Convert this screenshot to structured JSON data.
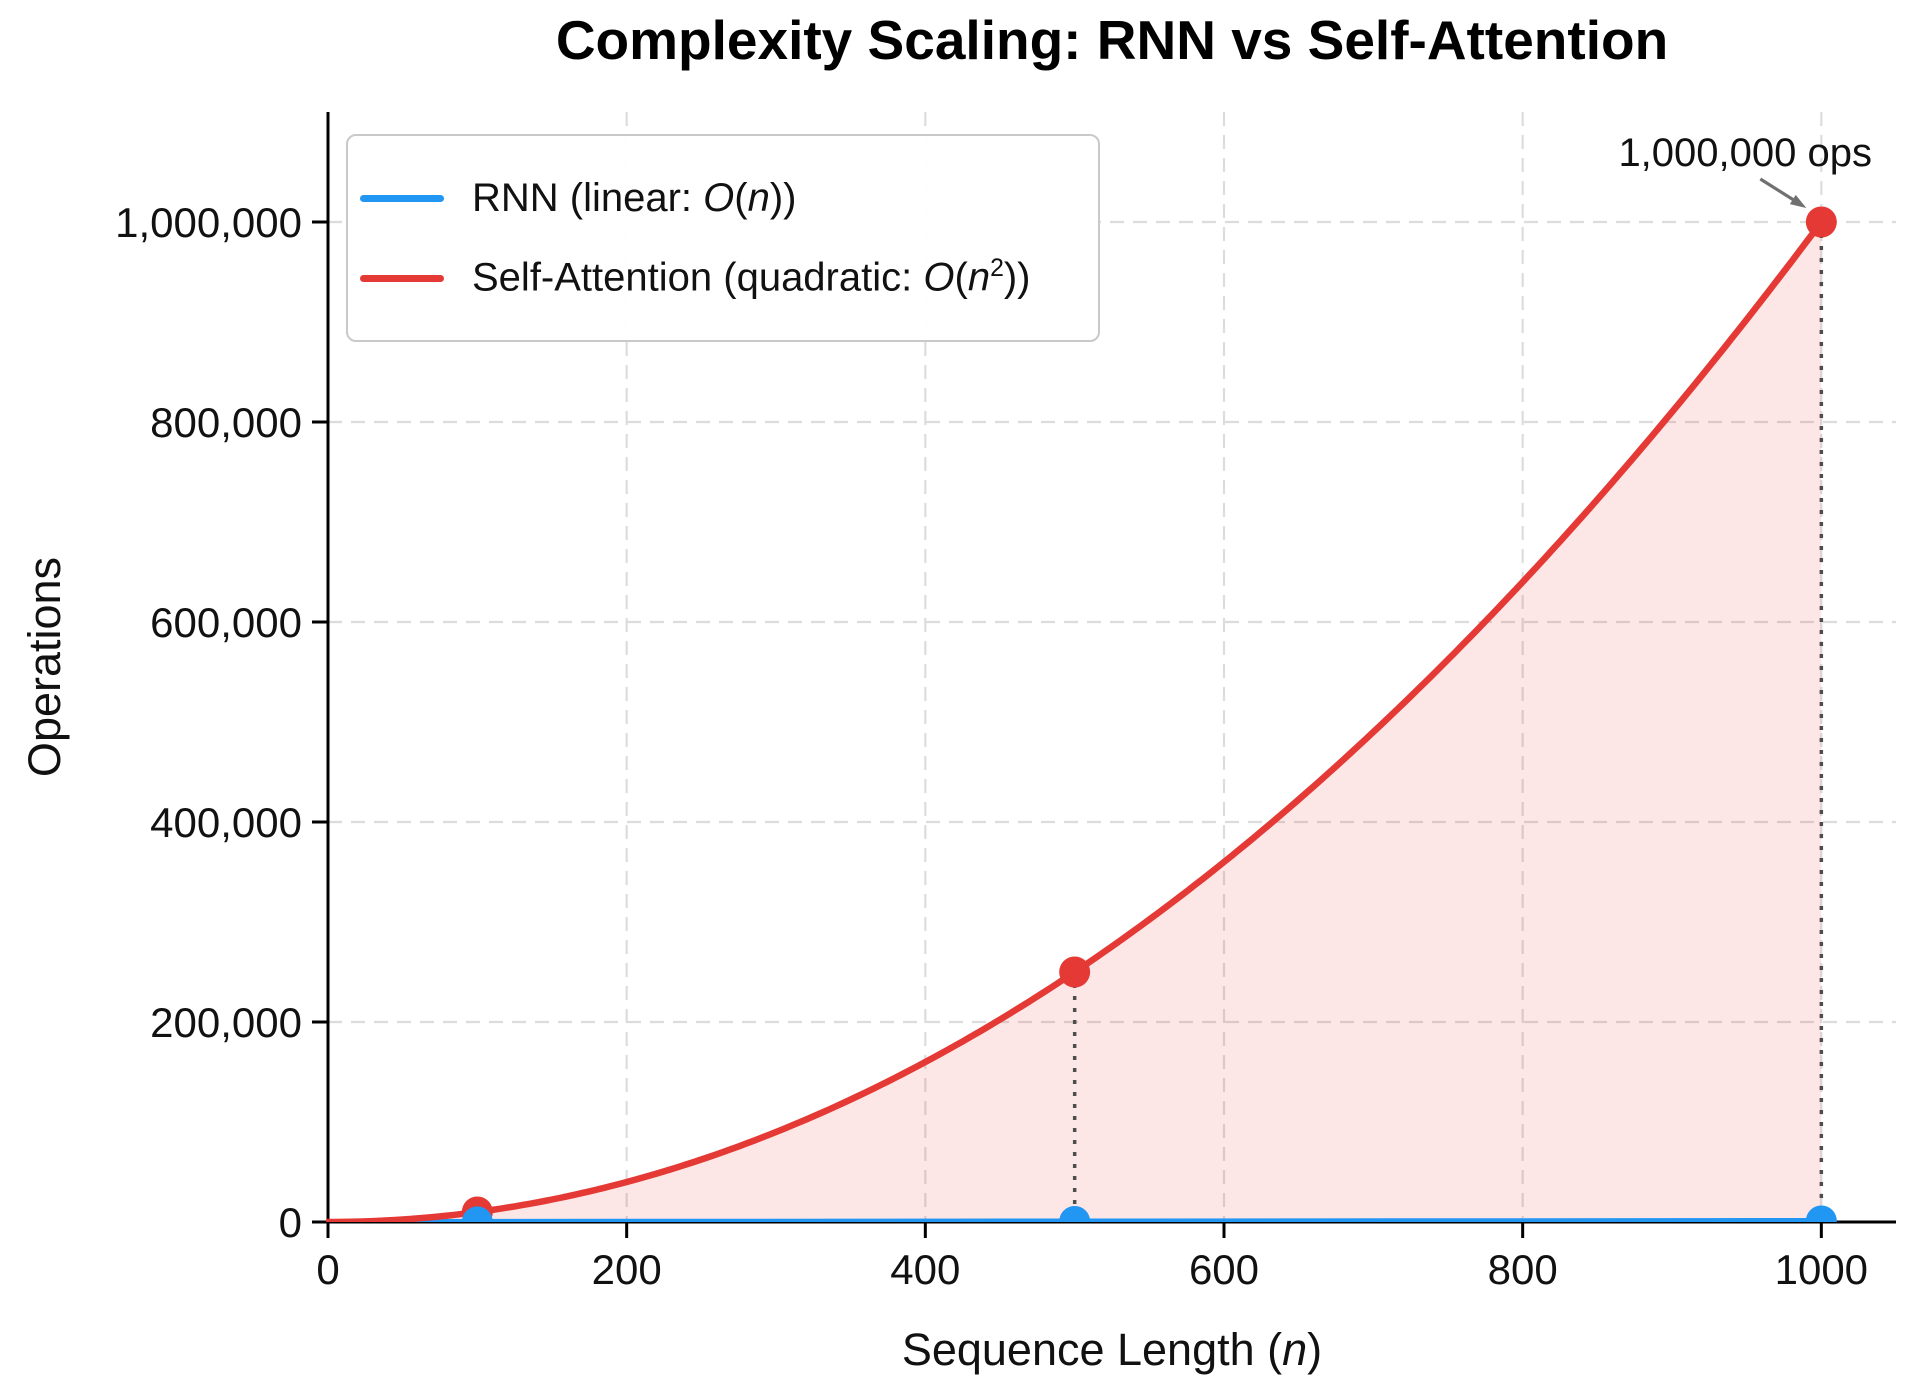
{
  "chart_data": {
    "type": "line",
    "title": "Complexity Scaling: RNN vs Self-Attention",
    "xlabel": "Sequence Length (n)",
    "ylabel": "Operations",
    "xlim": [
      0,
      1050
    ],
    "ylim": [
      0,
      1110000
    ],
    "x_ticks": [
      0,
      200,
      400,
      600,
      800,
      1000
    ],
    "y_ticks": [
      0,
      200000,
      400000,
      600000,
      800000,
      1000000
    ],
    "grid": true,
    "legend_position": "upper left",
    "series": [
      {
        "name": "RNN (linear: O(n))",
        "color": "#2196F3",
        "formula": "linear",
        "points": [
          [
            100,
            100
          ],
          [
            500,
            500
          ],
          [
            1000,
            1000
          ]
        ]
      },
      {
        "name": "Self-Attention (quadratic: O(n²))",
        "color": "#E53935",
        "formula": "quadratic",
        "points": [
          [
            100,
            10000
          ],
          [
            500,
            250000
          ],
          [
            1000,
            1000000
          ]
        ],
        "area_fill": true,
        "fill_opacity": 0.12
      }
    ],
    "marker_stems_x": [
      100,
      500,
      1000
    ],
    "annotation": {
      "text": "1,000,000 ops",
      "x": 1000,
      "y": 1000000
    }
  },
  "colors": {
    "grid": "#DCDCDC",
    "axis": "#000000",
    "text": "#111111",
    "stem": "#4D4D4D",
    "arrow": "#707070",
    "legend_border": "#C9C9C9"
  }
}
